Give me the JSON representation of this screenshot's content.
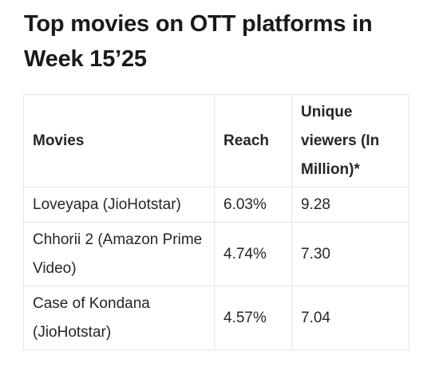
{
  "title": "Top movies on OTT platforms in Week 15’25",
  "table": {
    "headers": [
      "Movies",
      "Reach",
      "Unique viewers (In Million)*"
    ],
    "rows": [
      {
        "movie": "Loveyapa (JioHotstar)",
        "reach": "6.03%",
        "viewers": "9.28"
      },
      {
        "movie": "Chhorii 2  (Amazon Prime Video)",
        "reach": "4.74%",
        "viewers": "7.30"
      },
      {
        "movie": "Case of Kondana (JioHotstar)",
        "reach": "4.57%",
        "viewers": "7.04"
      }
    ]
  }
}
